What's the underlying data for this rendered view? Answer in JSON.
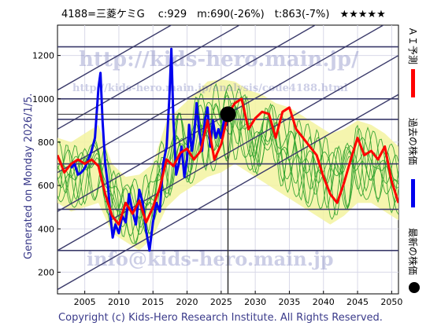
{
  "header": {
    "text": "4188=三菱ケミG　 c:929　m:690(-26%)　t:863(-7%)　★★★★★"
  },
  "side_label": "Generated on Monday 2026/1/5.",
  "footer": "Copyright (c) Kids-Hero Research Institute. All Rights Reserved.",
  "watermarks": {
    "url": "http://kids-hero.main.jp/",
    "analysis": "http://kids-hero.main.jp/analysis/code4188.html",
    "mail": "info@kids-hero.main.jp"
  },
  "legend": {
    "forecast": "ＡＩ予測",
    "past": "過去の株価",
    "latest": "最新の株価"
  },
  "colors": {
    "forecast": "#ff0000",
    "past": "#0000ee",
    "latest": "#000000",
    "band_fill": "#f3f3a0",
    "band_line": "#2aa02a",
    "guide_line": "#3a3a6a"
  },
  "chart_data": {
    "type": "line",
    "xlim": [
      2001,
      2051
    ],
    "ylim": [
      100,
      1340
    ],
    "xticks": [
      2005,
      2010,
      2015,
      2020,
      2025,
      2030,
      2035,
      2040,
      2045,
      2050
    ],
    "yticks": [
      200,
      400,
      600,
      800,
      1000,
      1200
    ],
    "grid": true,
    "latest_point": {
      "x": 2026.0,
      "y": 929
    },
    "horizontal_levels": [
      1240,
      1000,
      905,
      700,
      490,
      300
    ],
    "channel_lines": [
      {
        "x": [
          2001,
          2051
        ],
        "y": [
          300,
          1200
        ]
      },
      {
        "x": [
          2001,
          2051
        ],
        "y": [
          120,
          1020
        ]
      },
      {
        "x": [
          2001,
          2051
        ],
        "y": [
          480,
          1380
        ]
      },
      {
        "x": [
          2001,
          2051
        ],
        "y": [
          660,
          1560
        ]
      },
      {
        "x": [
          2001,
          2051
        ],
        "y": [
          860,
          1760
        ]
      },
      {
        "x": [
          2001,
          2051
        ],
        "y": [
          1040,
          1940
        ]
      }
    ],
    "series": [
      {
        "key": "past",
        "x": [
          2003.0,
          2003.5,
          2004.0,
          2004.5,
          2005.0,
          2005.5,
          2006.0,
          2006.5,
          2007.0,
          2007.3,
          2007.6,
          2008.0,
          2008.4,
          2008.8,
          2009.1,
          2009.5,
          2010.0,
          2010.5,
          2011.0,
          2011.5,
          2012.0,
          2012.5,
          2013.0,
          2013.5,
          2014.0,
          2014.5,
          2015.0,
          2015.5,
          2016.0,
          2016.5,
          2017.0,
          2017.4,
          2017.7,
          2018.0,
          2018.4,
          2018.8,
          2019.2,
          2019.6,
          2020.0,
          2020.3,
          2020.7,
          2021.0,
          2021.4,
          2021.8,
          2022.2,
          2022.6,
          2023.0,
          2023.4,
          2023.8,
          2024.2,
          2024.6,
          2025.0,
          2025.4,
          2025.8,
          2026.0
        ],
        "y": [
          680,
          700,
          650,
          660,
          680,
          720,
          760,
          820,
          1050,
          1120,
          900,
          700,
          600,
          450,
          360,
          420,
          380,
          460,
          430,
          560,
          480,
          420,
          580,
          520,
          390,
          300,
          430,
          520,
          480,
          700,
          780,
          1000,
          1230,
          900,
          650,
          700,
          780,
          640,
          720,
          880,
          760,
          820,
          980,
          850,
          760,
          900,
          960,
          780,
          900,
          820,
          860,
          820,
          900,
          880,
          929
        ]
      },
      {
        "key": "forecast",
        "x": [
          2001.0,
          2002.0,
          2003.0,
          2004.0,
          2005.0,
          2006.0,
          2007.0,
          2008.0,
          2009.0,
          2010.0,
          2011.0,
          2012.0,
          2013.0,
          2014.0,
          2015.0,
          2016.0,
          2017.0,
          2018.0,
          2019.0,
          2020.0,
          2021.0,
          2022.0,
          2023.0,
          2024.0,
          2025.0,
          2026.0,
          2027.0,
          2028.0,
          2029.0,
          2030.0,
          2031.0,
          2032.0,
          2033.0,
          2034.0,
          2035.0,
          2036.0,
          2037.0,
          2038.0,
          2039.0,
          2040.0,
          2041.0,
          2042.0,
          2043.0,
          2044.0,
          2045.0,
          2046.0,
          2047.0,
          2048.0,
          2049.0,
          2050.0,
          2051.0
        ],
        "y": [
          740,
          660,
          700,
          720,
          700,
          720,
          690,
          560,
          460,
          420,
          520,
          470,
          530,
          430,
          500,
          590,
          720,
          690,
          750,
          770,
          720,
          760,
          900,
          720,
          790,
          930,
          980,
          1000,
          860,
          910,
          940,
          930,
          820,
          940,
          960,
          860,
          820,
          780,
          740,
          640,
          560,
          520,
          610,
          720,
          820,
          740,
          760,
          720,
          780,
          620,
          520
        ]
      }
    ],
    "band": {
      "x": [
        2001,
        2003,
        2005,
        2007,
        2009,
        2011,
        2013,
        2015,
        2017,
        2019,
        2021,
        2023,
        2025,
        2027,
        2029,
        2031,
        2033,
        2035,
        2037,
        2039,
        2041,
        2043,
        2045,
        2047,
        2049,
        2051
      ],
      "upper": [
        820,
        800,
        840,
        880,
        700,
        640,
        650,
        700,
        900,
        960,
        1020,
        1080,
        1090,
        1080,
        1040,
        1020,
        980,
        960,
        920,
        880,
        840,
        860,
        900,
        880,
        840,
        780
      ],
      "lower": [
        520,
        480,
        500,
        520,
        380,
        340,
        300,
        360,
        500,
        560,
        600,
        640,
        660,
        700,
        660,
        620,
        580,
        540,
        500,
        460,
        420,
        460,
        520,
        520,
        480,
        440
      ]
    }
  }
}
